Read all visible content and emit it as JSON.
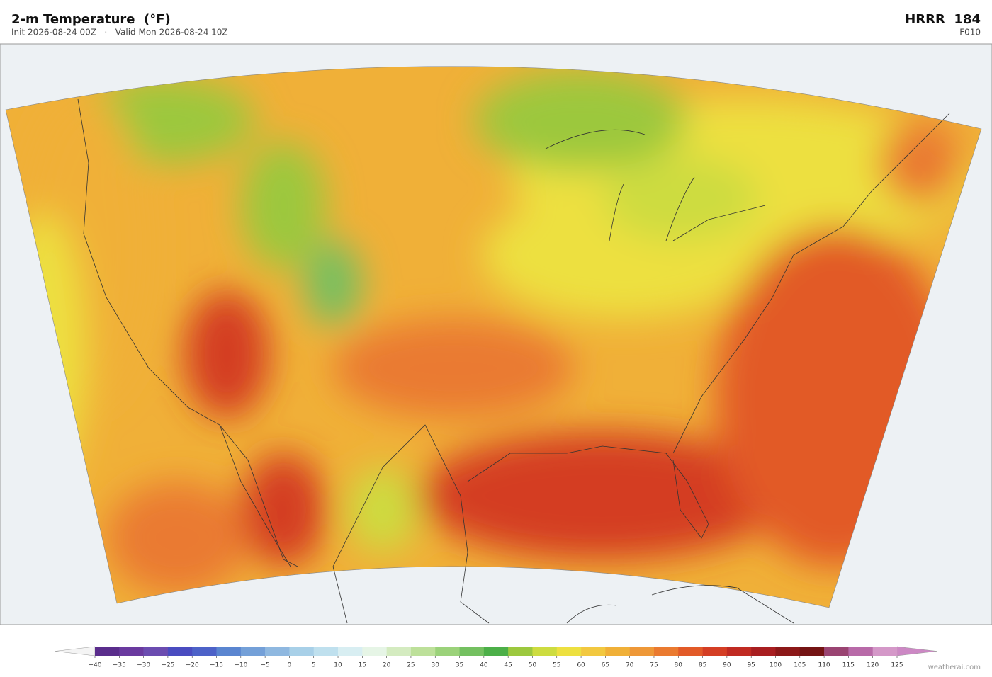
{
  "header": {
    "title": "2-m Temperature  (°F)",
    "subtitle": "Init 2026-08-24 00Z   ·   Valid Mon 2026-08-24 10Z",
    "model": "HRRR  184",
    "forecast_hour": "F010"
  },
  "colorbar": {
    "ticks": [
      {
        "value": -40,
        "label": "−40"
      },
      {
        "value": -35,
        "label": "−35"
      },
      {
        "value": -30,
        "label": "−30"
      },
      {
        "value": -25,
        "label": "−25"
      },
      {
        "value": -20,
        "label": "−20"
      },
      {
        "value": -15,
        "label": "−15"
      },
      {
        "value": -10,
        "label": "−10"
      },
      {
        "value": -5,
        "label": "−5"
      },
      0,
      5,
      10,
      15,
      20,
      25,
      30,
      35,
      40,
      45,
      50,
      55,
      60,
      65,
      70,
      75,
      80,
      85,
      90,
      95,
      100,
      105,
      110,
      115,
      120,
      125
    ],
    "colors": [
      "#5a2d8c",
      "#6a3a9f",
      "#6b4cb0",
      "#4a4cc0",
      "#4d62c8",
      "#5a85d0",
      "#74a0d8",
      "#8fb8e0",
      "#a8d0e8",
      "#bfe0ee",
      "#d8eef2",
      "#e6f5e6",
      "#d4ebc0",
      "#bde09a",
      "#9bd27a",
      "#74c060",
      "#4caf48",
      "#9cc83e",
      "#cddc40",
      "#ede040",
      "#f2c840",
      "#f0b038",
      "#ee9838",
      "#ea7a30",
      "#e25a28",
      "#d43e24",
      "#c02a22",
      "#a81e20",
      "#8c1818",
      "#741414",
      "#9a4472",
      "#b86aa8",
      "#d498c8"
    ],
    "under_color": "#f4f4f4",
    "over_color": "#cc88c4"
  },
  "watermark": "weatherai.com"
}
